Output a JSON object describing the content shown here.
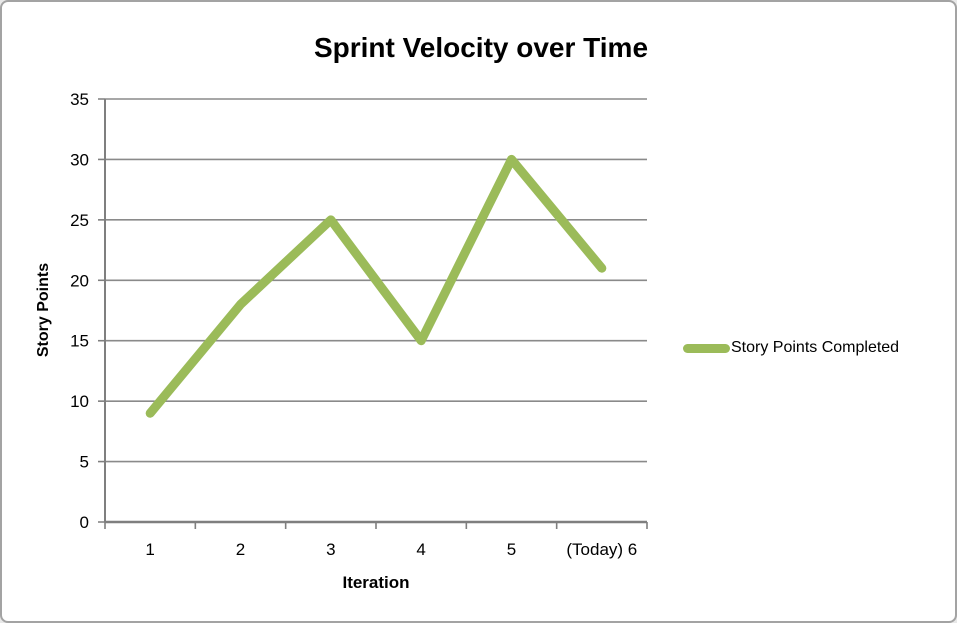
{
  "window": {
    "background": "#ffffff",
    "border_color": "#a3a3a3"
  },
  "chart_data": {
    "type": "line",
    "title": "Sprint Velocity over Time",
    "xlabel": "Iteration",
    "ylabel": "Story Points",
    "categories": [
      "1",
      "2",
      "3",
      "4",
      "5",
      "(Today) 6"
    ],
    "series": [
      {
        "name": "Story Points Completed",
        "values": [
          9,
          18,
          25,
          15,
          30,
          21
        ],
        "color": "#9BBB59",
        "line_width": 9
      }
    ],
    "ylim": [
      0,
      35
    ],
    "yticks": [
      0,
      5,
      10,
      15,
      20,
      25,
      30,
      35
    ],
    "grid": true,
    "legend_position": "right",
    "gridline_color": "#8a8a8a",
    "axis_color": "#7f7f7f",
    "text_color": "#000000"
  }
}
